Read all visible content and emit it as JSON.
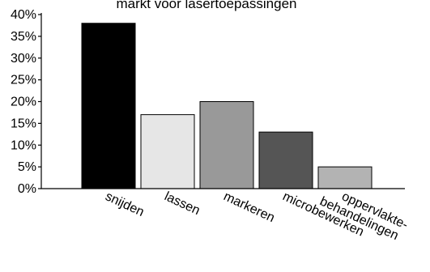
{
  "chart_data": {
    "type": "bar",
    "title": "markt voor lasertoepassingen",
    "categories": [
      "snijden",
      "lassen",
      "markeren",
      "microbewerken",
      "oppervlakte-behandelingen"
    ],
    "values": [
      38,
      17,
      20,
      13,
      5
    ],
    "colors": [
      "#000000",
      "#e6e6e6",
      "#999999",
      "#555555",
      "#b3b3b3"
    ],
    "ylim": [
      0,
      40
    ],
    "yticks": [
      "0%",
      "5%",
      "10%",
      "15%",
      "20%",
      "25%",
      "30%",
      "35%",
      "40%"
    ],
    "xlabel": "",
    "ylabel": "",
    "grid": false,
    "legend": "none"
  }
}
